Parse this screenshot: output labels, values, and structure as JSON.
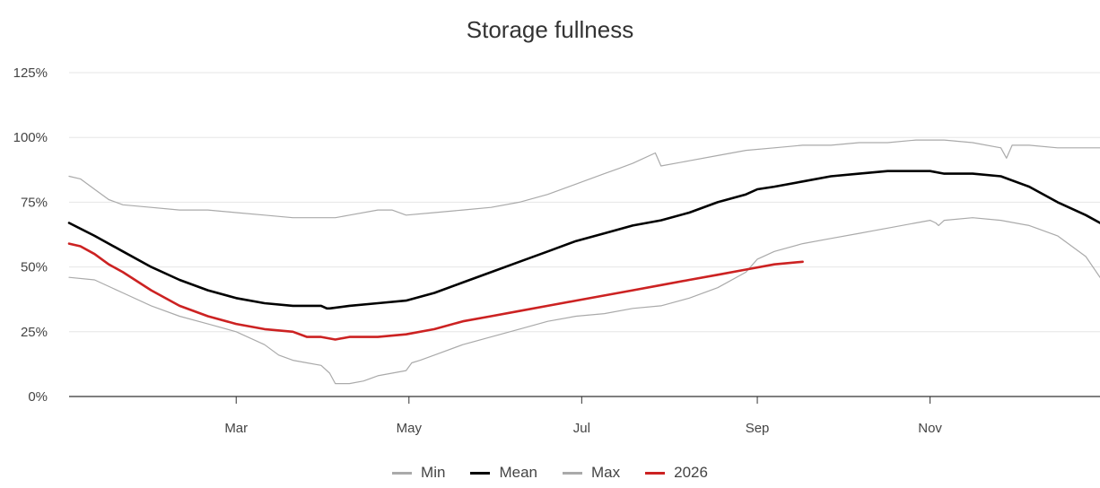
{
  "chart_data": {
    "type": "line",
    "title": "Storage fullness",
    "xlabel": "",
    "ylabel": "",
    "ylim": [
      0,
      125
    ],
    "yticks": [
      0,
      25,
      50,
      75,
      100,
      125
    ],
    "ytick_labels": [
      "0%",
      "25%",
      "50%",
      "75%",
      "100%",
      "125%"
    ],
    "xlim": [
      "Jan 1",
      "Dec 31"
    ],
    "xtick_days": [
      60,
      121,
      182,
      244,
      305
    ],
    "xtick_labels": [
      "Mar",
      "May",
      "Jul",
      "Sep",
      "Nov"
    ],
    "grid": "horizontal",
    "legend": "bottom",
    "series": [
      {
        "name": "Min",
        "color": "#aaaaaa",
        "x": [
          1,
          10,
          20,
          30,
          40,
          50,
          60,
          70,
          75,
          80,
          85,
          90,
          93,
          95,
          100,
          105,
          110,
          115,
          120,
          122,
          125,
          130,
          140,
          150,
          160,
          170,
          180,
          190,
          200,
          210,
          220,
          230,
          240,
          244,
          250,
          260,
          270,
          280,
          285,
          290,
          300,
          305,
          307,
          308,
          310,
          320,
          330,
          340,
          350,
          360,
          365
        ],
        "y": [
          46,
          45,
          40,
          35,
          31,
          28,
          25,
          20,
          16,
          14,
          13,
          12,
          9,
          5,
          5,
          6,
          8,
          9,
          10,
          13,
          14,
          16,
          20,
          23,
          26,
          29,
          31,
          32,
          34,
          35,
          38,
          42,
          48,
          53,
          56,
          59,
          61,
          63,
          64,
          65,
          67,
          68,
          67,
          66,
          68,
          69,
          68,
          66,
          62,
          54,
          46
        ]
      },
      {
        "name": "Mean",
        "color": "#000000",
        "x": [
          1,
          10,
          20,
          30,
          40,
          50,
          60,
          70,
          80,
          90,
          92,
          93,
          100,
          110,
          120,
          130,
          140,
          150,
          160,
          170,
          180,
          190,
          200,
          210,
          220,
          230,
          240,
          244,
          250,
          260,
          270,
          280,
          290,
          300,
          305,
          310,
          320,
          330,
          340,
          350,
          360,
          365
        ],
        "y": [
          67,
          62,
          56,
          50,
          45,
          41,
          38,
          36,
          35,
          35,
          34,
          34,
          35,
          36,
          37,
          40,
          44,
          48,
          52,
          56,
          60,
          63,
          66,
          68,
          71,
          75,
          78,
          80,
          81,
          83,
          85,
          86,
          87,
          87,
          87,
          86,
          86,
          85,
          81,
          75,
          70,
          67
        ]
      },
      {
        "name": "Max",
        "color": "#aaaaaa",
        "x": [
          1,
          5,
          10,
          15,
          20,
          30,
          40,
          50,
          60,
          70,
          80,
          90,
          95,
          100,
          110,
          115,
          120,
          130,
          140,
          150,
          160,
          170,
          180,
          190,
          195,
          200,
          208,
          210,
          220,
          230,
          240,
          250,
          260,
          270,
          280,
          290,
          300,
          305,
          310,
          320,
          330,
          332,
          334,
          340,
          350,
          360,
          365
        ],
        "y": [
          85,
          84,
          80,
          76,
          74,
          73,
          72,
          72,
          71,
          70,
          69,
          69,
          69,
          70,
          72,
          72,
          70,
          71,
          72,
          73,
          75,
          78,
          82,
          86,
          88,
          90,
          94,
          89,
          91,
          93,
          95,
          96,
          97,
          97,
          98,
          98,
          99,
          99,
          99,
          98,
          96,
          92,
          97,
          97,
          96,
          96,
          96
        ]
      },
      {
        "name": "2026",
        "color": "#cc2222",
        "x": [
          1,
          5,
          10,
          15,
          20,
          30,
          40,
          50,
          60,
          70,
          80,
          85,
          90,
          95,
          100,
          110,
          120,
          130,
          140,
          150,
          160,
          170,
          180,
          190,
          200,
          210,
          220,
          230,
          240,
          250,
          260
        ],
        "y": [
          59,
          58,
          55,
          51,
          48,
          41,
          35,
          31,
          28,
          26,
          25,
          23,
          23,
          22,
          23,
          23,
          24,
          26,
          29,
          31,
          33,
          35,
          37,
          39,
          41,
          43,
          45,
          47,
          49,
          51,
          52
        ]
      }
    ]
  }
}
